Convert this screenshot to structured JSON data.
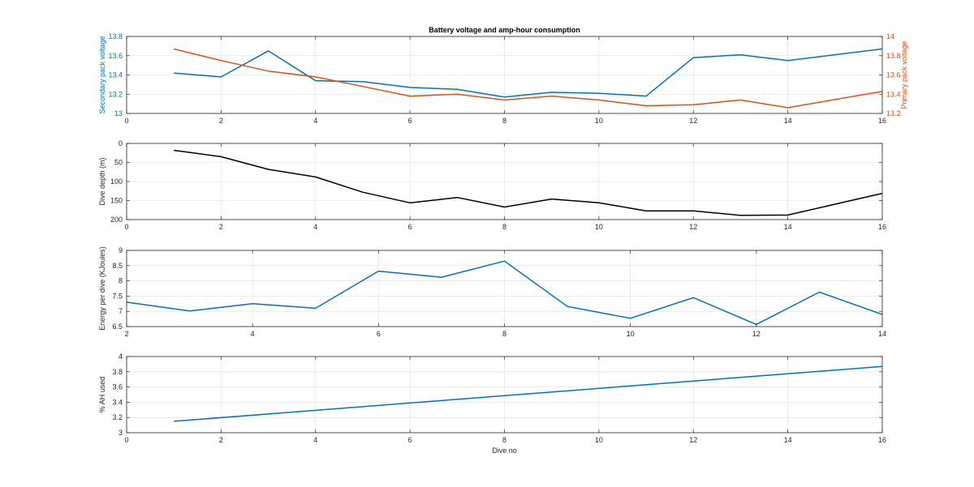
{
  "colors": {
    "blue": "#0072bd",
    "orange": "#d95319",
    "black": "#000000",
    "axis": "#262626",
    "grid": "#dfdfdf"
  },
  "chart_data": [
    {
      "type": "line",
      "title": "Battery voltage and amp-hour consumption",
      "xlabel": "",
      "ylabel": "Secondary pack voltage",
      "y2label": "Primary pack voltage",
      "xlim": [
        0,
        16
      ],
      "ylim": [
        13,
        13.8
      ],
      "y2lim": [
        13.2,
        14
      ],
      "xticks": [
        "0",
        "2",
        "4",
        "6",
        "8",
        "10",
        "12",
        "14",
        "16"
      ],
      "yticks": [
        "13",
        "13.2",
        "13.4",
        "13.6",
        "13.8"
      ],
      "y2ticks": [
        "13.2",
        "13.4",
        "13.6",
        "13.8",
        "14"
      ],
      "grid": true,
      "series": [
        {
          "axis": "left",
          "color": "blue",
          "x": [
            1,
            2,
            3,
            4,
            5,
            6,
            7,
            8,
            9,
            10,
            11,
            12,
            13,
            14,
            16
          ],
          "y": [
            13.42,
            13.38,
            13.65,
            13.34,
            13.33,
            13.27,
            13.25,
            13.17,
            13.22,
            13.21,
            13.18,
            13.58,
            13.61,
            13.55,
            13.67
          ]
        },
        {
          "axis": "right",
          "color": "orange",
          "x": [
            1,
            2,
            3,
            4,
            5,
            6,
            7,
            8,
            9,
            10,
            11,
            12,
            13,
            14,
            16
          ],
          "y": [
            13.87,
            13.75,
            13.64,
            13.58,
            13.48,
            13.38,
            13.4,
            13.34,
            13.38,
            13.34,
            13.28,
            13.29,
            13.34,
            13.26,
            13.43
          ]
        }
      ]
    },
    {
      "type": "line",
      "title": "",
      "xlabel": "",
      "ylabel": "Dive depth (m)",
      "xlim": [
        0,
        16
      ],
      "ylim": [
        0,
        200
      ],
      "y_reversed": true,
      "xticks": [
        "0",
        "2",
        "4",
        "6",
        "8",
        "10",
        "12",
        "14",
        "16"
      ],
      "yticks": [
        "0",
        "50",
        "100",
        "150",
        "200"
      ],
      "grid": true,
      "series": [
        {
          "axis": "left",
          "color": "black",
          "x": [
            1,
            2,
            3,
            4,
            5,
            6,
            7,
            8,
            9,
            10,
            11,
            12,
            13,
            14,
            16
          ],
          "y": [
            18,
            35,
            68,
            88,
            128,
            156,
            142,
            167,
            146,
            156,
            177,
            177,
            189,
            188,
            131
          ]
        }
      ]
    },
    {
      "type": "line",
      "title": "",
      "xlabel": "",
      "ylabel": "Energy per dive (KJoules)",
      "xlim": [
        2,
        14
      ],
      "ylim": [
        6.5,
        9
      ],
      "xticks": [
        "2",
        "4",
        "6",
        "8",
        "10",
        "12",
        "14"
      ],
      "yticks": [
        "6.5",
        "7",
        "7.5",
        "8",
        "8.5",
        "9"
      ],
      "grid": true,
      "series": [
        {
          "axis": "left",
          "color": "blue",
          "x": [
            2,
            3,
            4,
            5,
            6,
            7,
            8,
            9,
            10,
            11,
            12,
            13,
            14
          ],
          "y": [
            7.3,
            7.01,
            7.25,
            7.1,
            8.32,
            8.12,
            8.65,
            7.16,
            6.77,
            7.45,
            6.57,
            7.63,
            6.9
          ]
        }
      ]
    },
    {
      "type": "line",
      "title": "",
      "xlabel": "Dive no",
      "ylabel": "% AH used",
      "xlim": [
        0,
        16
      ],
      "ylim": [
        3,
        4
      ],
      "xticks": [
        "0",
        "2",
        "4",
        "6",
        "8",
        "10",
        "12",
        "14",
        "16"
      ],
      "yticks": [
        "3",
        "3.2",
        "3.4",
        "3.6",
        "3.8",
        "4"
      ],
      "grid": true,
      "series": [
        {
          "axis": "left",
          "color": "blue",
          "x": [
            1,
            16
          ],
          "y": [
            3.15,
            3.87
          ]
        }
      ]
    }
  ]
}
